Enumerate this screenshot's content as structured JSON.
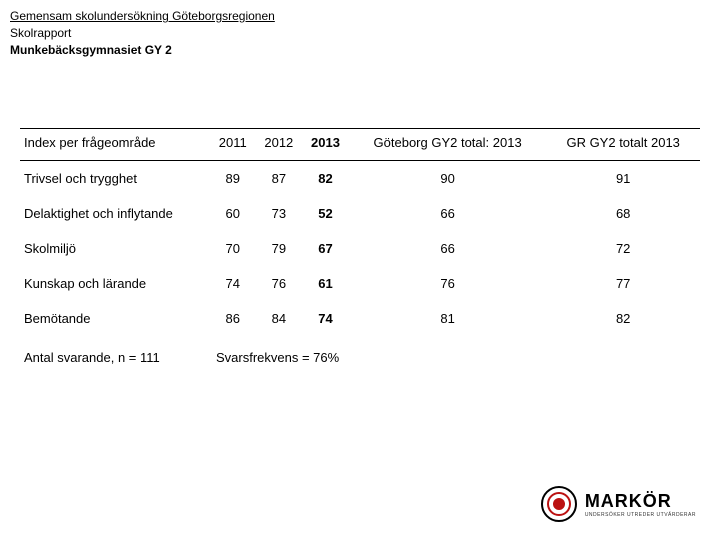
{
  "header": {
    "line1": "Gemensam skolundersökning Göteborgsregionen",
    "line2": "Skolrapport",
    "line3": "Munkebäcksgymnasiet GY 2"
  },
  "table": {
    "columns": [
      {
        "key": "label",
        "label": "Index per frågeområde",
        "align": "left",
        "bold": false
      },
      {
        "key": "y2011",
        "label": "2011",
        "bold": false
      },
      {
        "key": "y2012",
        "label": "2012",
        "bold": false
      },
      {
        "key": "y2013",
        "label": "2013",
        "bold": true
      },
      {
        "key": "gbg",
        "label": "Göteborg GY2 total: 2013",
        "bold": false
      },
      {
        "key": "gr",
        "label": "GR GY2 totalt 2013",
        "bold": false
      }
    ],
    "rows": [
      {
        "label": "Trivsel och trygghet",
        "y2011": "89",
        "y2012": "87",
        "y2013": "82",
        "gbg": "90",
        "gr": "91"
      },
      {
        "label": "Delaktighet och inflytande",
        "y2011": "60",
        "y2012": "73",
        "y2013": "52",
        "gbg": "66",
        "gr": "68"
      },
      {
        "label": "Skolmiljö",
        "y2011": "70",
        "y2012": "79",
        "y2013": "67",
        "gbg": "66",
        "gr": "72"
      },
      {
        "label": "Kunskap och lärande",
        "y2011": "74",
        "y2012": "76",
        "y2013": "61",
        "gbg": "76",
        "gr": "77"
      },
      {
        "label": "Bemötande",
        "y2011": "86",
        "y2012": "84",
        "y2013": "74",
        "gbg": "81",
        "gr": "82"
      }
    ],
    "footer": {
      "respondents": "Antal svarande, n = 111",
      "response_rate": "Svarsfrekvens = 76%"
    }
  },
  "logo": {
    "brand": "MARKÖR",
    "tagline": "UNDERSÖKER  UTREDER  UTVÄRDERAR"
  }
}
